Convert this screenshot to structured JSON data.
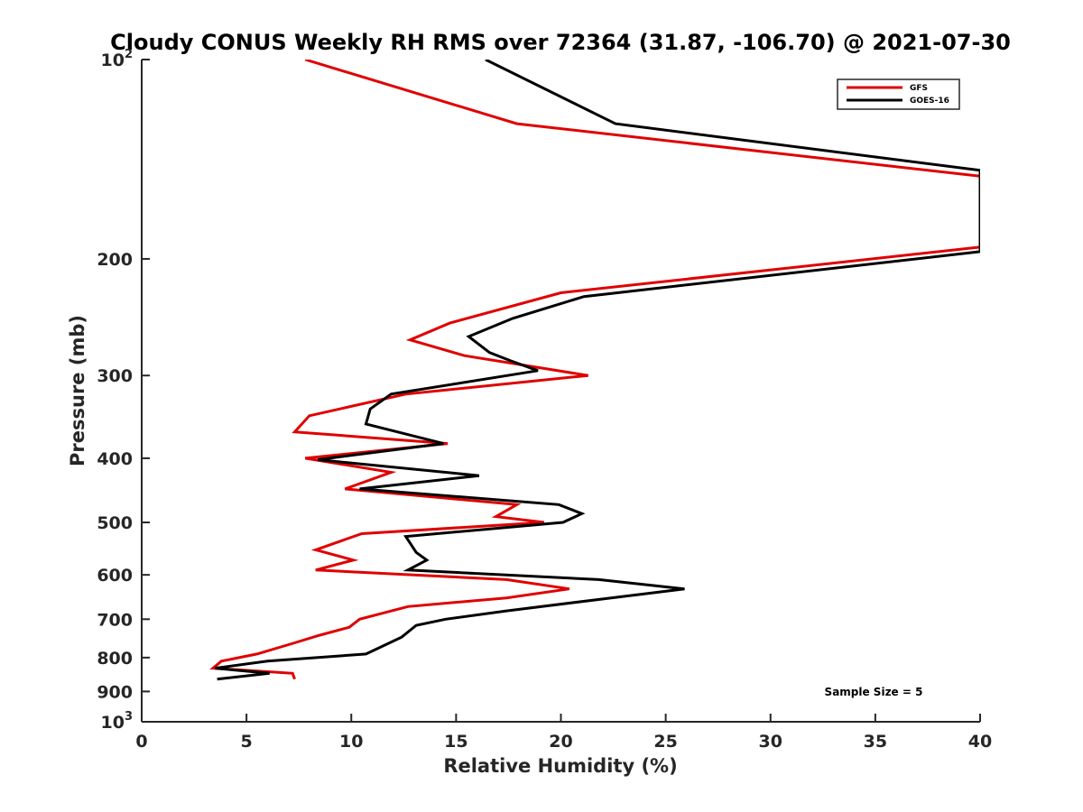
{
  "chart_data": {
    "type": "line",
    "title": "Cloudy CONUS Weekly RH RMS over 72364 (31.87, -106.70) @ 2021-07-30",
    "xlabel": "Relative Humidity (%)",
    "ylabel": "Pressure (mb)",
    "xlim": [
      0,
      40
    ],
    "ylim": [
      100,
      1000
    ],
    "y_scale": "log",
    "y_reversed": true,
    "grid": false,
    "legend_position": "top-right",
    "x_ticks": [
      0,
      5,
      10,
      15,
      20,
      25,
      30,
      35,
      40
    ],
    "y_ticks": [
      100,
      200,
      300,
      400,
      500,
      600,
      700,
      800,
      900,
      1000
    ],
    "y_tick_labels": {
      "100": {
        "base": "10",
        "exp": "2"
      },
      "200": "200",
      "300": "300",
      "400": "400",
      "500": "500",
      "600": "600",
      "700": "700",
      "800": "800",
      "900": "900",
      "1000": {
        "base": "10",
        "exp": "3"
      }
    },
    "annotation": "Sample Size = 5",
    "series": [
      {
        "name": "GFS",
        "color": "#e00000",
        "points": [
          [
            7.8,
            100
          ],
          [
            17.9,
            125
          ],
          [
            40,
            150
          ],
          [
            40,
            192
          ],
          [
            20.0,
            225
          ],
          [
            14.7,
            250
          ],
          [
            12.8,
            265
          ],
          [
            15.4,
            280
          ],
          [
            21.3,
            300
          ],
          [
            12.6,
            320
          ],
          [
            8.0,
            345
          ],
          [
            7.3,
            365
          ],
          [
            14.6,
            380
          ],
          [
            7.8,
            400
          ],
          [
            11.9,
            420
          ],
          [
            9.7,
            445
          ],
          [
            17.9,
            470
          ],
          [
            16.9,
            490
          ],
          [
            19.2,
            500
          ],
          [
            10.5,
            520
          ],
          [
            8.3,
            550
          ],
          [
            10.1,
            570
          ],
          [
            8.3,
            590
          ],
          [
            17.4,
            610
          ],
          [
            20.4,
            630
          ],
          [
            17.4,
            650
          ],
          [
            12.7,
            670
          ],
          [
            10.4,
            700
          ],
          [
            9.9,
            720
          ],
          [
            8.5,
            740
          ],
          [
            7.3,
            760
          ],
          [
            5.5,
            790
          ],
          [
            3.8,
            810
          ],
          [
            3.4,
            830
          ],
          [
            7.2,
            845
          ],
          [
            7.3,
            862
          ]
        ]
      },
      {
        "name": "GOES-16",
        "color": "#000000",
        "points": [
          [
            16.4,
            100
          ],
          [
            22.6,
            125
          ],
          [
            40,
            147
          ],
          [
            40,
            195
          ],
          [
            21.1,
            228
          ],
          [
            17.7,
            246
          ],
          [
            15.6,
            262
          ],
          [
            16.6,
            277
          ],
          [
            17.6,
            285
          ],
          [
            18.9,
            295
          ],
          [
            11.9,
            320
          ],
          [
            10.9,
            337
          ],
          [
            10.7,
            355
          ],
          [
            14.4,
            380
          ],
          [
            8.4,
            402
          ],
          [
            16.1,
            425
          ],
          [
            10.4,
            445
          ],
          [
            19.9,
            470
          ],
          [
            21.0,
            485
          ],
          [
            20.1,
            500
          ],
          [
            12.6,
            525
          ],
          [
            13.1,
            555
          ],
          [
            13.6,
            570
          ],
          [
            12.7,
            590
          ],
          [
            21.8,
            610
          ],
          [
            25.9,
            630
          ],
          [
            22.4,
            650
          ],
          [
            17.4,
            680
          ],
          [
            14.5,
            700
          ],
          [
            13.1,
            715
          ],
          [
            12.4,
            745
          ],
          [
            10.7,
            790
          ],
          [
            6.0,
            810
          ],
          [
            3.5,
            830
          ],
          [
            6.1,
            845
          ],
          [
            3.6,
            862
          ]
        ]
      }
    ]
  }
}
